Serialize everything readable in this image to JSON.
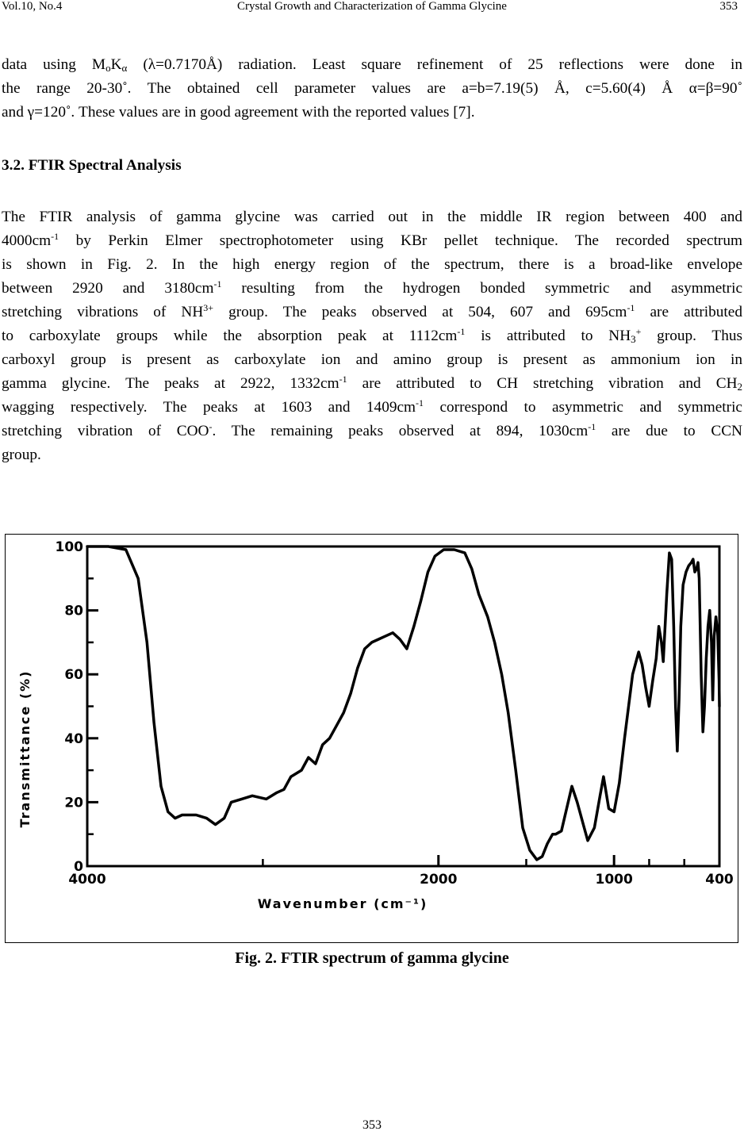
{
  "header": {
    "left": "Vol.10, No.4",
    "center": "Crystal Growth and Characterization of Gamma Glycine",
    "right": "353"
  },
  "para1": {
    "l1a": "data using M",
    "l1_sub_o": "o",
    "l1b": "K",
    "l1_sub_alpha": "α",
    "l1c": " (λ=0.7170Å) radiation. Least square refinement of 25 reflections were done in",
    "l2": "the range 20-30˚. The obtained cell parameter values are a=b=7.19(5) Å, c=5.60(4) Å α=β=90˚",
    "l3": "and γ=120˚. These values are in good agreement with the reported values [7]."
  },
  "section_heading": "3.2. FTIR Spectral Analysis",
  "para2": {
    "l1": "The FTIR analysis of gamma glycine was carried out in the middle IR region between 400 and",
    "l2a": "4000cm",
    "l2b": " by Perkin Elmer spectrophotometer using KBr pellet technique. The recorded spectrum",
    "l3": "is shown in Fig. 2. In the high energy region of the spectrum, there is a broad-like envelope",
    "l4a": "between 2920 and 3180cm",
    "l4b": " resulting from the hydrogen bonded symmetric and asymmetric",
    "l5a": "stretching vibrations of NH",
    "l5_sup": "3+",
    "l5b": " group. The peaks observed at 504, 607 and 695cm",
    "l5c": " are attributed",
    "l6a": "to carboxylate groups while the absorption peak at 1112cm",
    "l6b": " is attributed to NH",
    "l6_sub": "3",
    "l6_sup": "+",
    "l6c": " group. Thus",
    "l7": "carboxyl group is present as carboxylate ion and amino group is present as ammonium ion in",
    "l8a": "gamma glycine. The peaks at 2922, 1332cm",
    "l8b": " are attributed to CH stretching vibration and CH",
    "l8_sub": "2",
    "l9a": "wagging respectively. The peaks at 1603 and 1409cm",
    "l9b": " correspond to asymmetric and symmetric",
    "l10a": "stretching vibration of COO",
    "l10_sup": "-",
    "l10b": ". The remaining peaks observed at 894, 1030cm",
    "l10c": " are due to CCN",
    "l11": "group.",
    "inv_unit": "-1"
  },
  "caption": "Fig. 2. FTIR spectrum of gamma glycine",
  "footer_page": "353",
  "chart_data": {
    "type": "line",
    "title": "",
    "xlabel": "Wavenumber (cm⁻¹)",
    "ylabel": "Transmittance (%)",
    "xlim": [
      4000,
      400
    ],
    "ylim": [
      0,
      100
    ],
    "x_ticks": [
      "4000",
      "2000",
      "1000",
      "400"
    ],
    "y_ticks": [
      "0",
      "20",
      "40",
      "60",
      "80",
      "100"
    ],
    "grid": false,
    "series": [
      {
        "name": "",
        "points": [
          [
            4000,
            100
          ],
          [
            3880,
            100
          ],
          [
            3780,
            99
          ],
          [
            3710,
            90
          ],
          [
            3660,
            70
          ],
          [
            3620,
            45
          ],
          [
            3580,
            25
          ],
          [
            3540,
            17
          ],
          [
            3500,
            15
          ],
          [
            3460,
            16
          ],
          [
            3380,
            16
          ],
          [
            3320,
            15
          ],
          [
            3270,
            13
          ],
          [
            3220,
            15
          ],
          [
            3180,
            20
          ],
          [
            3120,
            21
          ],
          [
            3060,
            22
          ],
          [
            2980,
            21
          ],
          [
            2920,
            23
          ],
          [
            2880,
            24
          ],
          [
            2840,
            28
          ],
          [
            2780,
            30
          ],
          [
            2740,
            34
          ],
          [
            2700,
            32
          ],
          [
            2660,
            38
          ],
          [
            2620,
            40
          ],
          [
            2580,
            44
          ],
          [
            2540,
            48
          ],
          [
            2500,
            54
          ],
          [
            2460,
            62
          ],
          [
            2420,
            68
          ],
          [
            2380,
            70
          ],
          [
            2340,
            71
          ],
          [
            2300,
            72
          ],
          [
            2260,
            73
          ],
          [
            2220,
            71
          ],
          [
            2180,
            68
          ],
          [
            2140,
            75
          ],
          [
            2100,
            83
          ],
          [
            2060,
            92
          ],
          [
            2020,
            97
          ],
          [
            1970,
            99
          ],
          [
            1910,
            99
          ],
          [
            1850,
            98
          ],
          [
            1810,
            93
          ],
          [
            1770,
            85
          ],
          [
            1720,
            78
          ],
          [
            1680,
            70
          ],
          [
            1640,
            60
          ],
          [
            1603,
            48
          ],
          [
            1560,
            30
          ],
          [
            1520,
            12
          ],
          [
            1480,
            5
          ],
          [
            1440,
            2
          ],
          [
            1409,
            3
          ],
          [
            1380,
            7
          ],
          [
            1350,
            10
          ],
          [
            1332,
            10
          ],
          [
            1300,
            11
          ],
          [
            1270,
            18
          ],
          [
            1240,
            25
          ],
          [
            1210,
            20
          ],
          [
            1170,
            12
          ],
          [
            1150,
            8
          ],
          [
            1112,
            12
          ],
          [
            1080,
            22
          ],
          [
            1060,
            28
          ],
          [
            1030,
            18
          ],
          [
            1000,
            17
          ],
          [
            970,
            26
          ],
          [
            940,
            40
          ],
          [
            894,
            60
          ],
          [
            860,
            67
          ],
          [
            840,
            63
          ],
          [
            820,
            56
          ],
          [
            800,
            50
          ],
          [
            780,
            58
          ],
          [
            760,
            65
          ],
          [
            745,
            75
          ],
          [
            730,
            70
          ],
          [
            720,
            64
          ],
          [
            700,
            85
          ],
          [
            685,
            98
          ],
          [
            672,
            96
          ],
          [
            660,
            75
          ],
          [
            650,
            50
          ],
          [
            640,
            36
          ],
          [
            630,
            52
          ],
          [
            620,
            75
          ],
          [
            607,
            88
          ],
          [
            590,
            92
          ],
          [
            575,
            94
          ],
          [
            560,
            95
          ],
          [
            550,
            96
          ],
          [
            540,
            92
          ],
          [
            530,
            93
          ],
          [
            522,
            95
          ],
          [
            515,
            90
          ],
          [
            504,
            60
          ],
          [
            494,
            42
          ],
          [
            485,
            50
          ],
          [
            475,
            65
          ],
          [
            465,
            75
          ],
          [
            455,
            80
          ],
          [
            445,
            70
          ],
          [
            438,
            52
          ],
          [
            430,
            72
          ],
          [
            420,
            78
          ],
          [
            410,
            73
          ],
          [
            402,
            58
          ],
          [
            400,
            50
          ]
        ]
      }
    ]
  }
}
